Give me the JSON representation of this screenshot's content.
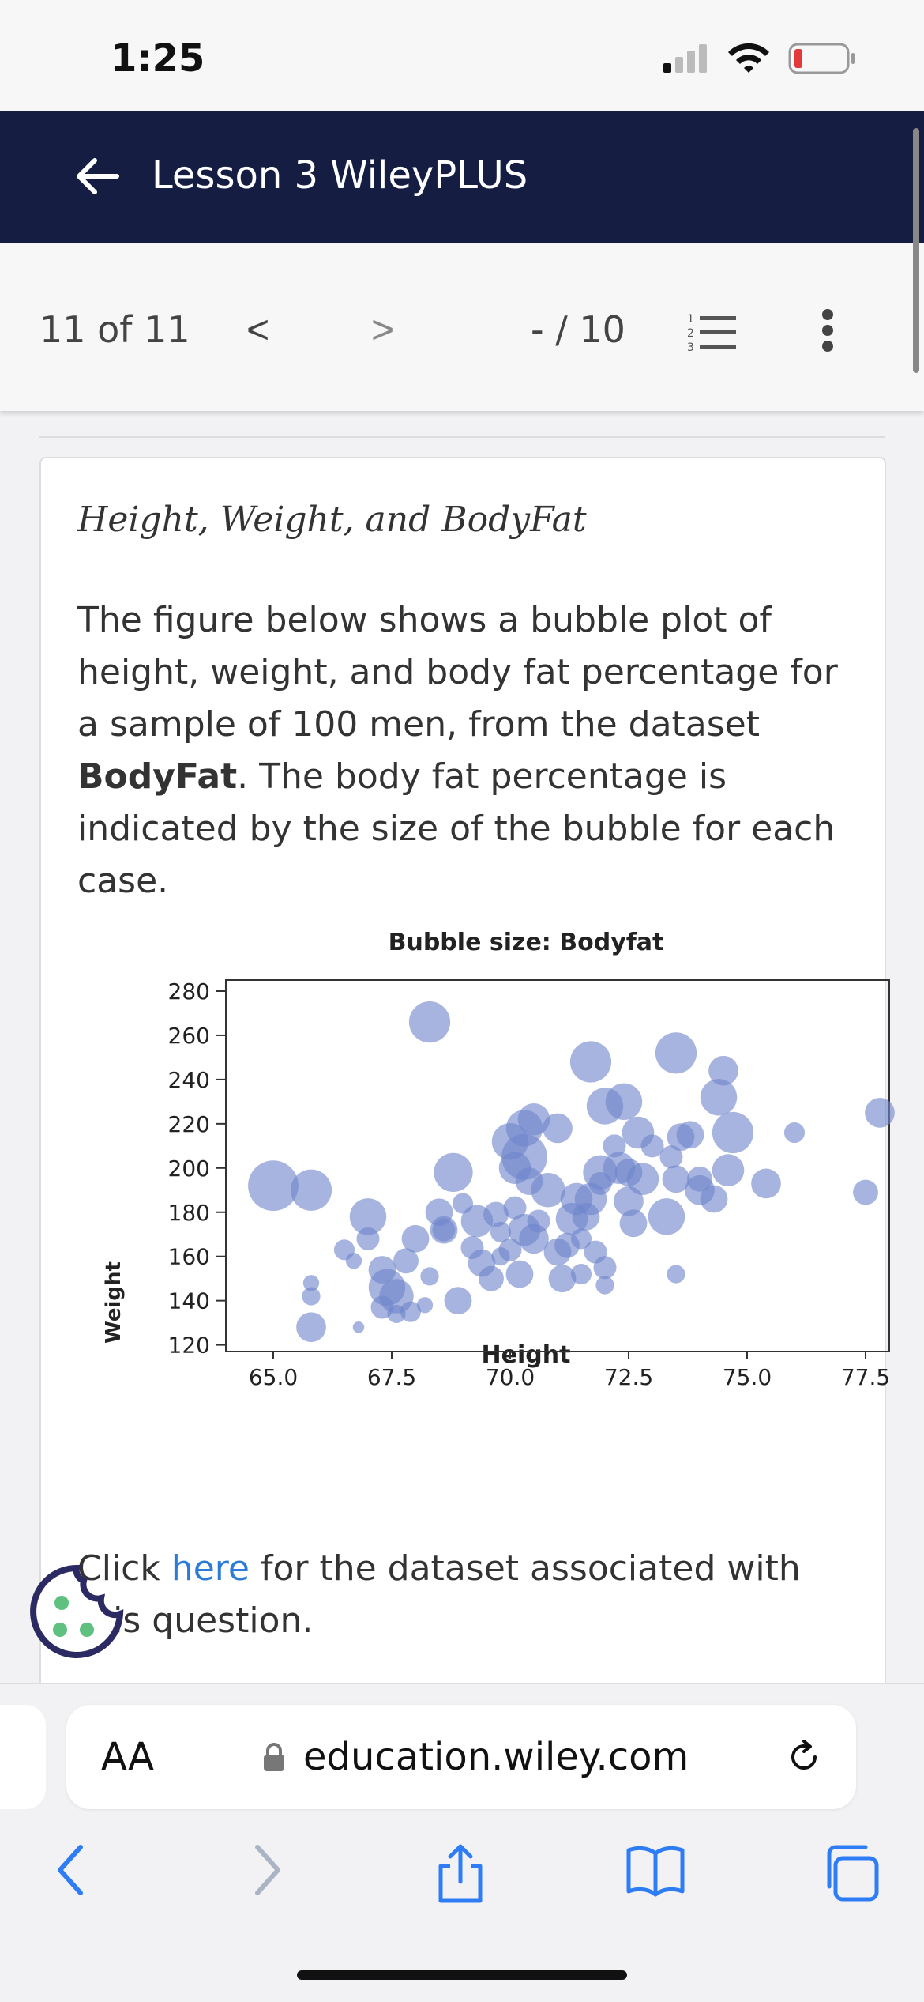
{
  "status_bar": {
    "time": "1:25"
  },
  "header": {
    "title": "Lesson 3 WileyPLUS"
  },
  "toolbar": {
    "page_count": "11 of 11",
    "prev": "<",
    "next": ">",
    "score": "- / 10"
  },
  "question": {
    "title": "Height, Weight, and BodyFat",
    "text_before": "The figure below shows a bubble plot of height, weight, and body fat percentage for a sample of 100 men, from the dataset ",
    "dataset_name": "BodyFat",
    "text_after": ". The body fat percentage is indicated by the size of the bubble for each case.",
    "link_prefix": "Click ",
    "link_label": "here",
    "link_suffix": " for the dataset associated with this question."
  },
  "chart_data": {
    "type": "scatter",
    "title": "Bubble size: Bodyfat",
    "xlabel": "Height",
    "ylabel": "Weight",
    "xlim": [
      64.0,
      78.0
    ],
    "ylim": [
      117,
      285
    ],
    "x_ticks": [
      "65.0",
      "67.5",
      "70.0",
      "72.5",
      "75.0",
      "77.5"
    ],
    "y_ticks": [
      "280",
      "260",
      "240",
      "220",
      "200",
      "180",
      "160",
      "140",
      "120"
    ],
    "color": "#7086cc",
    "points": [
      {
        "x": 65.0,
        "y": 192,
        "s": 22
      },
      {
        "x": 65.8,
        "y": 190,
        "s": 18
      },
      {
        "x": 65.8,
        "y": 148,
        "s": 7
      },
      {
        "x": 65.8,
        "y": 142,
        "s": 8
      },
      {
        "x": 65.8,
        "y": 128,
        "s": 13
      },
      {
        "x": 66.5,
        "y": 163,
        "s": 9
      },
      {
        "x": 66.7,
        "y": 158,
        "s": 7
      },
      {
        "x": 67.0,
        "y": 178,
        "s": 16
      },
      {
        "x": 67.0,
        "y": 168,
        "s": 10
      },
      {
        "x": 66.8,
        "y": 128,
        "s": 5
      },
      {
        "x": 67.3,
        "y": 154,
        "s": 12
      },
      {
        "x": 67.4,
        "y": 146,
        "s": 16
      },
      {
        "x": 67.3,
        "y": 137,
        "s": 10
      },
      {
        "x": 67.6,
        "y": 142,
        "s": 15
      },
      {
        "x": 67.6,
        "y": 134,
        "s": 8
      },
      {
        "x": 67.8,
        "y": 158,
        "s": 11
      },
      {
        "x": 67.9,
        "y": 135,
        "s": 9
      },
      {
        "x": 68.0,
        "y": 168,
        "s": 12
      },
      {
        "x": 68.3,
        "y": 151,
        "s": 8
      },
      {
        "x": 68.2,
        "y": 138,
        "s": 7
      },
      {
        "x": 68.5,
        "y": 180,
        "s": 12
      },
      {
        "x": 68.6,
        "y": 172,
        "s": 10
      },
      {
        "x": 68.8,
        "y": 198,
        "s": 17
      },
      {
        "x": 68.9,
        "y": 140,
        "s": 12
      },
      {
        "x": 68.3,
        "y": 266,
        "s": 18
      },
      {
        "x": 69.0,
        "y": 184,
        "s": 9
      },
      {
        "x": 69.3,
        "y": 176,
        "s": 14
      },
      {
        "x": 69.2,
        "y": 164,
        "s": 10
      },
      {
        "x": 69.4,
        "y": 157,
        "s": 12
      },
      {
        "x": 69.6,
        "y": 150,
        "s": 11
      },
      {
        "x": 69.7,
        "y": 179,
        "s": 11
      },
      {
        "x": 69.8,
        "y": 171,
        "s": 9
      },
      {
        "x": 70.0,
        "y": 163,
        "s": 10
      },
      {
        "x": 70.2,
        "y": 152,
        "s": 12
      },
      {
        "x": 70.1,
        "y": 182,
        "s": 10
      },
      {
        "x": 70.0,
        "y": 212,
        "s": 16
      },
      {
        "x": 70.1,
        "y": 200,
        "s": 14
      },
      {
        "x": 70.3,
        "y": 205,
        "s": 20
      },
      {
        "x": 70.3,
        "y": 218,
        "s": 16
      },
      {
        "x": 70.4,
        "y": 194,
        "s": 12
      },
      {
        "x": 70.5,
        "y": 222,
        "s": 14
      },
      {
        "x": 70.5,
        "y": 168,
        "s": 13
      },
      {
        "x": 70.6,
        "y": 176,
        "s": 10
      },
      {
        "x": 70.8,
        "y": 190,
        "s": 15
      },
      {
        "x": 71.0,
        "y": 162,
        "s": 12
      },
      {
        "x": 71.0,
        "y": 218,
        "s": 13
      },
      {
        "x": 71.3,
        "y": 177,
        "s": 14
      },
      {
        "x": 71.2,
        "y": 165,
        "s": 11
      },
      {
        "x": 71.6,
        "y": 178,
        "s": 12
      },
      {
        "x": 71.5,
        "y": 168,
        "s": 9
      },
      {
        "x": 71.7,
        "y": 186,
        "s": 14
      },
      {
        "x": 71.8,
        "y": 162,
        "s": 10
      },
      {
        "x": 71.9,
        "y": 193,
        "s": 10
      },
      {
        "x": 72.0,
        "y": 155,
        "s": 10
      },
      {
        "x": 71.9,
        "y": 198,
        "s": 15
      },
      {
        "x": 71.7,
        "y": 248,
        "s": 18
      },
      {
        "x": 72.0,
        "y": 228,
        "s": 16
      },
      {
        "x": 72.4,
        "y": 230,
        "s": 16
      },
      {
        "x": 72.2,
        "y": 210,
        "s": 10
      },
      {
        "x": 72.3,
        "y": 200,
        "s": 14
      },
      {
        "x": 72.5,
        "y": 198,
        "s": 12
      },
      {
        "x": 72.5,
        "y": 185,
        "s": 13
      },
      {
        "x": 72.6,
        "y": 175,
        "s": 12
      },
      {
        "x": 72.7,
        "y": 216,
        "s": 14
      },
      {
        "x": 72.8,
        "y": 195,
        "s": 14
      },
      {
        "x": 73.0,
        "y": 210,
        "s": 10
      },
      {
        "x": 73.3,
        "y": 178,
        "s": 16
      },
      {
        "x": 73.4,
        "y": 205,
        "s": 10
      },
      {
        "x": 73.6,
        "y": 214,
        "s": 12
      },
      {
        "x": 73.5,
        "y": 195,
        "s": 12
      },
      {
        "x": 73.5,
        "y": 152,
        "s": 8
      },
      {
        "x": 73.5,
        "y": 252,
        "s": 18
      },
      {
        "x": 73.8,
        "y": 215,
        "s": 12
      },
      {
        "x": 74.0,
        "y": 195,
        "s": 11
      },
      {
        "x": 74.0,
        "y": 190,
        "s": 13
      },
      {
        "x": 74.3,
        "y": 186,
        "s": 12
      },
      {
        "x": 74.4,
        "y": 232,
        "s": 16
      },
      {
        "x": 74.5,
        "y": 244,
        "s": 13
      },
      {
        "x": 74.6,
        "y": 199,
        "s": 14
      },
      {
        "x": 74.7,
        "y": 216,
        "s": 18
      },
      {
        "x": 75.4,
        "y": 193,
        "s": 13
      },
      {
        "x": 76.0,
        "y": 216,
        "s": 9
      },
      {
        "x": 77.5,
        "y": 189,
        "s": 11
      },
      {
        "x": 77.8,
        "y": 225,
        "s": 13
      },
      {
        "x": 72.0,
        "y": 147,
        "s": 8
      },
      {
        "x": 71.5,
        "y": 152,
        "s": 9
      },
      {
        "x": 71.1,
        "y": 150,
        "s": 12
      },
      {
        "x": 68.6,
        "y": 172,
        "s": 12
      },
      {
        "x": 69.8,
        "y": 160,
        "s": 8
      },
      {
        "x": 70.3,
        "y": 172,
        "s": 14
      },
      {
        "x": 71.4,
        "y": 186,
        "s": 14
      }
    ]
  },
  "browser": {
    "text_size": "AA",
    "url": "education.wiley.com"
  }
}
